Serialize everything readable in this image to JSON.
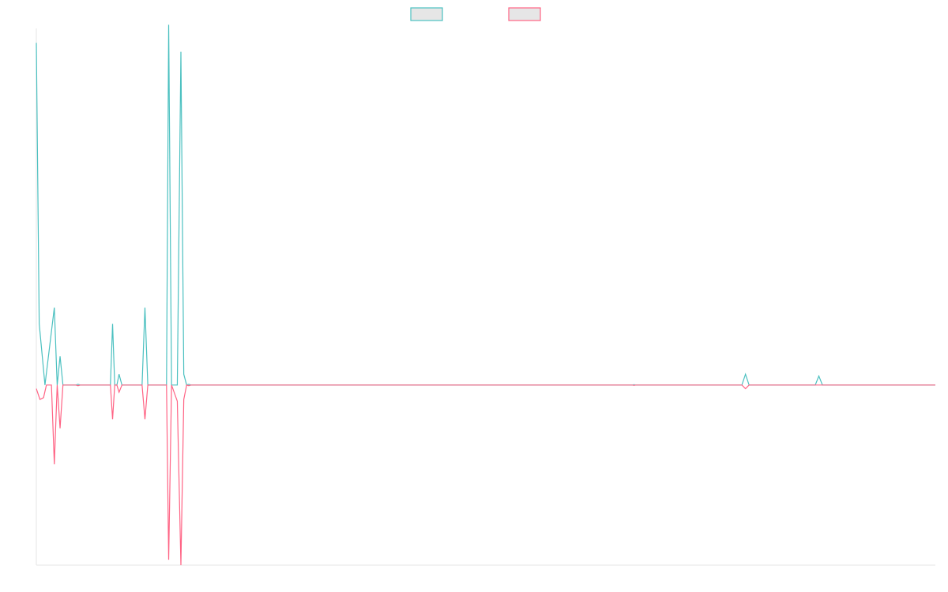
{
  "chart_data": {
    "type": "line",
    "title": "",
    "xlabel": "",
    "ylabel": "",
    "grid": false,
    "legend": "top-center",
    "xlim": [
      0,
      125
    ],
    "ylim": [
      -1.0,
      1.98
    ],
    "colors": {
      "series_0": "#4bc0c0",
      "series_1": "#ff6384",
      "axis": "#e6e6e6"
    },
    "series": [
      {
        "color": "#4bc0c0",
        "points": [
          [
            0,
            1.9
          ],
          [
            0.4,
            0.34
          ],
          [
            1.2,
            0
          ],
          [
            2.5,
            0.43
          ],
          [
            2.9,
            0
          ],
          [
            3.3,
            0.16
          ],
          [
            3.7,
            0
          ],
          [
            5.5,
            0
          ],
          [
            5.8,
            0.004
          ],
          [
            6.1,
            0
          ],
          [
            10.3,
            0
          ],
          [
            10.6,
            0.34
          ],
          [
            10.9,
            0
          ],
          [
            11.2,
            0
          ],
          [
            11.5,
            0.06
          ],
          [
            11.9,
            0
          ],
          [
            14.7,
            0
          ],
          [
            15.1,
            0.43
          ],
          [
            15.5,
            0
          ],
          [
            18.1,
            0
          ],
          [
            18.4,
            2.0
          ],
          [
            18.8,
            0
          ],
          [
            19.6,
            0
          ],
          [
            20.1,
            1.85
          ],
          [
            20.5,
            0.06
          ],
          [
            20.9,
            0
          ],
          [
            21.2,
            0.004
          ],
          [
            21.5,
            0
          ],
          [
            82.9,
            0
          ],
          [
            83.1,
            0.002
          ],
          [
            83.3,
            0
          ],
          [
            98.1,
            0
          ],
          [
            98.6,
            0.06
          ],
          [
            99.1,
            0
          ],
          [
            108.3,
            0
          ],
          [
            108.8,
            0.05
          ],
          [
            109.3,
            0
          ],
          [
            125,
            0
          ]
        ]
      },
      {
        "color": "#ff6384",
        "points": [
          [
            0,
            -0.02
          ],
          [
            0.5,
            -0.08
          ],
          [
            1.0,
            -0.07
          ],
          [
            1.4,
            0
          ],
          [
            2.1,
            0
          ],
          [
            2.5,
            -0.44
          ],
          [
            2.9,
            0
          ],
          [
            3.3,
            -0.24
          ],
          [
            3.7,
            0
          ],
          [
            5.5,
            0
          ],
          [
            5.8,
            -0.004
          ],
          [
            6.1,
            0
          ],
          [
            10.3,
            0
          ],
          [
            10.6,
            -0.19
          ],
          [
            10.9,
            0
          ],
          [
            11.2,
            0
          ],
          [
            11.5,
            -0.04
          ],
          [
            11.9,
            0
          ],
          [
            14.7,
            0
          ],
          [
            15.1,
            -0.19
          ],
          [
            15.5,
            0
          ],
          [
            18.1,
            0
          ],
          [
            18.4,
            -0.97
          ],
          [
            18.8,
            0
          ],
          [
            19.6,
            -0.09
          ],
          [
            20.1,
            -1.0
          ],
          [
            20.5,
            -0.08
          ],
          [
            20.9,
            0
          ],
          [
            21.2,
            -0.004
          ],
          [
            21.5,
            0
          ],
          [
            82.9,
            0
          ],
          [
            83.1,
            -0.002
          ],
          [
            83.3,
            0
          ],
          [
            98.1,
            0
          ],
          [
            98.6,
            -0.02
          ],
          [
            99.1,
            0
          ],
          [
            125,
            0
          ]
        ]
      }
    ]
  }
}
